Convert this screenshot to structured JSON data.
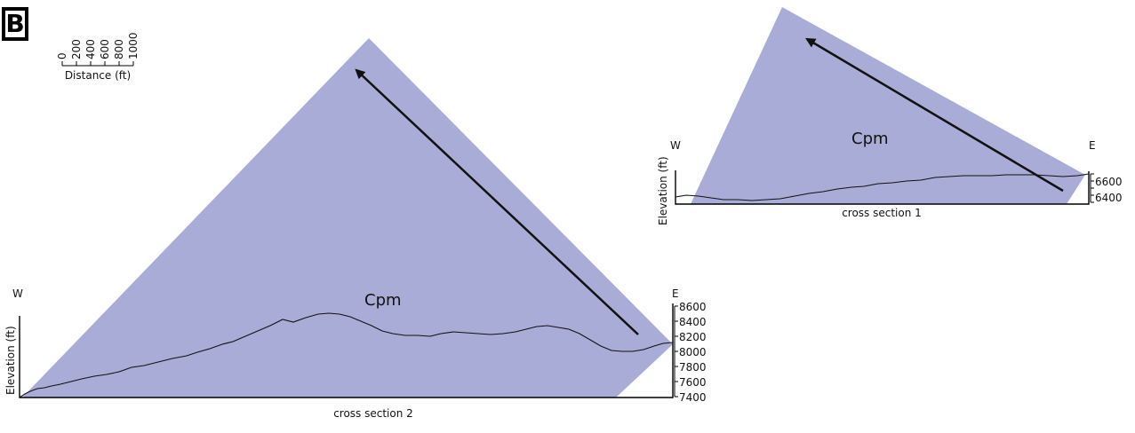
{
  "panel_label": "B",
  "scale_bar": {
    "ticks": [
      "0",
      "200",
      "400",
      "600",
      "800",
      "1000"
    ],
    "label": "Distance (ft)"
  },
  "section1": {
    "title": "cross section 1",
    "west": "W",
    "east": "E",
    "unit_label": "Cpm",
    "y_axis_label": "Elevation (ft)",
    "y_ticks": [
      "6600",
      "6400"
    ],
    "fill_color": "#a8acd6"
  },
  "section2": {
    "title": "cross section 2",
    "west": "W",
    "east": "E",
    "unit_label": "Cpm",
    "y_axis_label": "Elevation (ft)",
    "y_ticks": [
      "8600",
      "8400",
      "8200",
      "8000",
      "7800",
      "7600",
      "7400"
    ],
    "fill_color": "#a8acd6"
  }
}
